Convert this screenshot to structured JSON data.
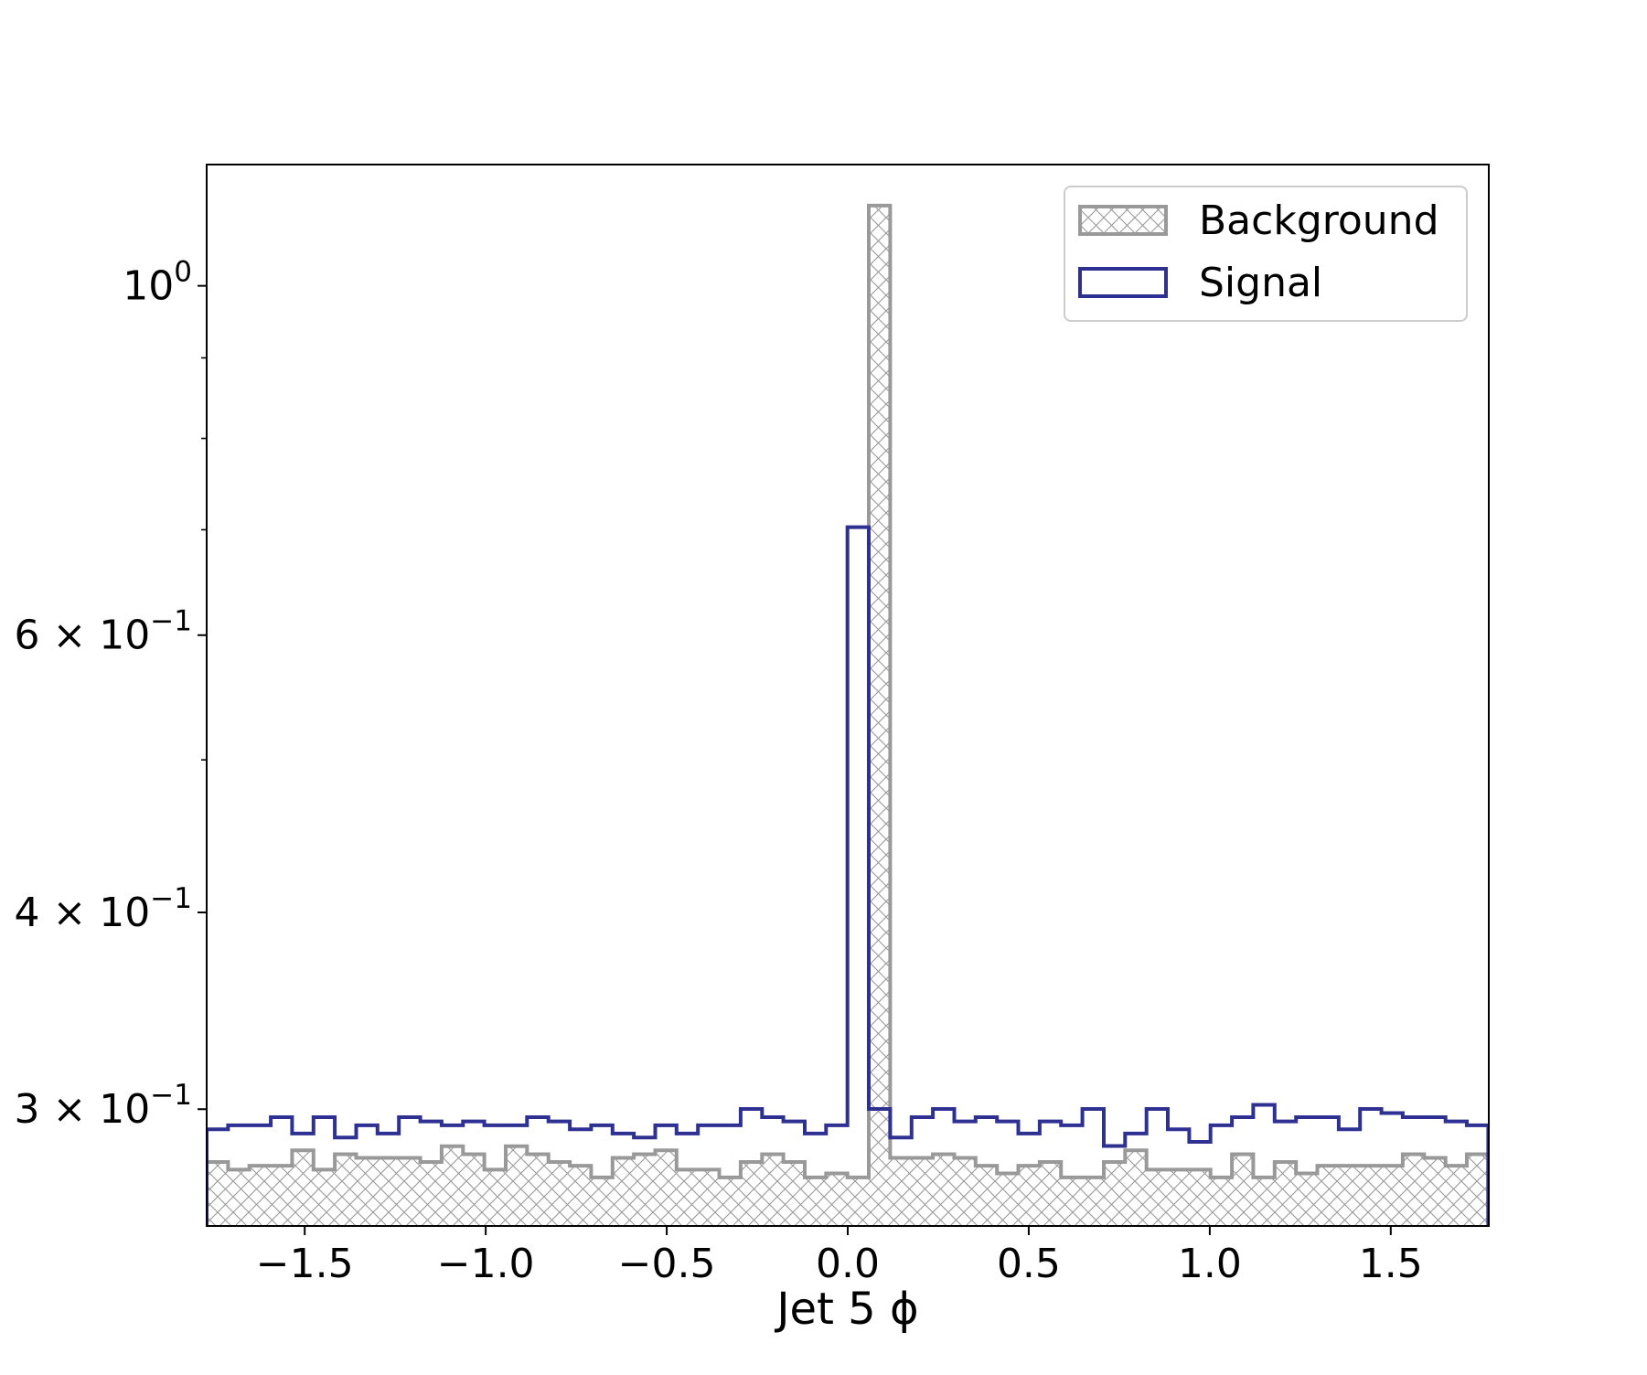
{
  "chart_data": {
    "type": "histogram",
    "title": "",
    "xlabel": "Jet 5 ϕ",
    "ylabel": "",
    "yscale": "log",
    "xlim": [
      -1.7708,
      1.7708
    ],
    "ylim": [
      0.2529,
      1.194
    ],
    "grid": false,
    "legend": {
      "position": "top-right",
      "entries": [
        "Background",
        "Signal"
      ]
    },
    "x_ticks": [
      {
        "value": -1.5,
        "label": "−1.5"
      },
      {
        "value": -1.0,
        "label": "−1.0"
      },
      {
        "value": -0.5,
        "label": "−0.5"
      },
      {
        "value": 0.0,
        "label": "0.0"
      },
      {
        "value": 0.5,
        "label": "0.5"
      },
      {
        "value": 1.0,
        "label": "1.0"
      },
      {
        "value": 1.5,
        "label": "1.5"
      }
    ],
    "y_ticks": [
      {
        "value": 1.0,
        "mantissa": "10",
        "exponent": "0"
      },
      {
        "value": 0.6,
        "mantissa": "6 × 10",
        "exponent": "−1"
      },
      {
        "value": 0.4,
        "mantissa": "4 × 10",
        "exponent": "−1"
      },
      {
        "value": 0.3,
        "mantissa": "3 × 10",
        "exponent": "−1"
      }
    ],
    "y_minor_ticks": [
      0.5,
      0.7,
      0.8,
      0.9
    ],
    "bin_edges_start": -1.7708,
    "bin_width": 0.059,
    "series": [
      {
        "name": "Background",
        "style": "hatched-step",
        "color": "#999999",
        "values": [
          0.2777,
          0.2746,
          0.2762,
          0.2762,
          0.2825,
          0.2746,
          0.2809,
          0.2794,
          0.2794,
          0.2794,
          0.2777,
          0.2842,
          0.2809,
          0.2746,
          0.2842,
          0.2809,
          0.2777,
          0.2762,
          0.2715,
          0.2794,
          0.2809,
          0.2825,
          0.2746,
          0.2746,
          0.2715,
          0.2777,
          0.2809,
          0.2777,
          0.2715,
          0.2731,
          0.2715,
          1.1245,
          0.2794,
          0.2794,
          0.2809,
          0.2794,
          0.2762,
          0.2731,
          0.2762,
          0.2777,
          0.2715,
          0.2715,
          0.2777,
          0.2825,
          0.2746,
          0.2746,
          0.2746,
          0.2715,
          0.2809,
          0.2715,
          0.2777,
          0.2731,
          0.2762,
          0.2762,
          0.2762,
          0.2762,
          0.2809,
          0.2794,
          0.2762,
          0.2809
        ]
      },
      {
        "name": "Signal",
        "style": "step",
        "color": "#2e3192",
        "values": [
          0.2913,
          0.293,
          0.293,
          0.2965,
          0.2895,
          0.2965,
          0.2878,
          0.293,
          0.2895,
          0.2965,
          0.2947,
          0.293,
          0.2947,
          0.293,
          0.293,
          0.2965,
          0.2947,
          0.2913,
          0.293,
          0.2895,
          0.2878,
          0.293,
          0.2895,
          0.293,
          0.293,
          0.3001,
          0.2965,
          0.2947,
          0.2895,
          0.293,
          0.7027,
          0.3001,
          0.2878,
          0.2965,
          0.3001,
          0.2947,
          0.2965,
          0.2947,
          0.2895,
          0.2947,
          0.293,
          0.3001,
          0.2843,
          0.2895,
          0.3001,
          0.2913,
          0.286,
          0.293,
          0.2965,
          0.3019,
          0.2947,
          0.2965,
          0.2965,
          0.2913,
          0.3001,
          0.2983,
          0.2965,
          0.2965,
          0.2947,
          0.293
        ]
      }
    ]
  }
}
